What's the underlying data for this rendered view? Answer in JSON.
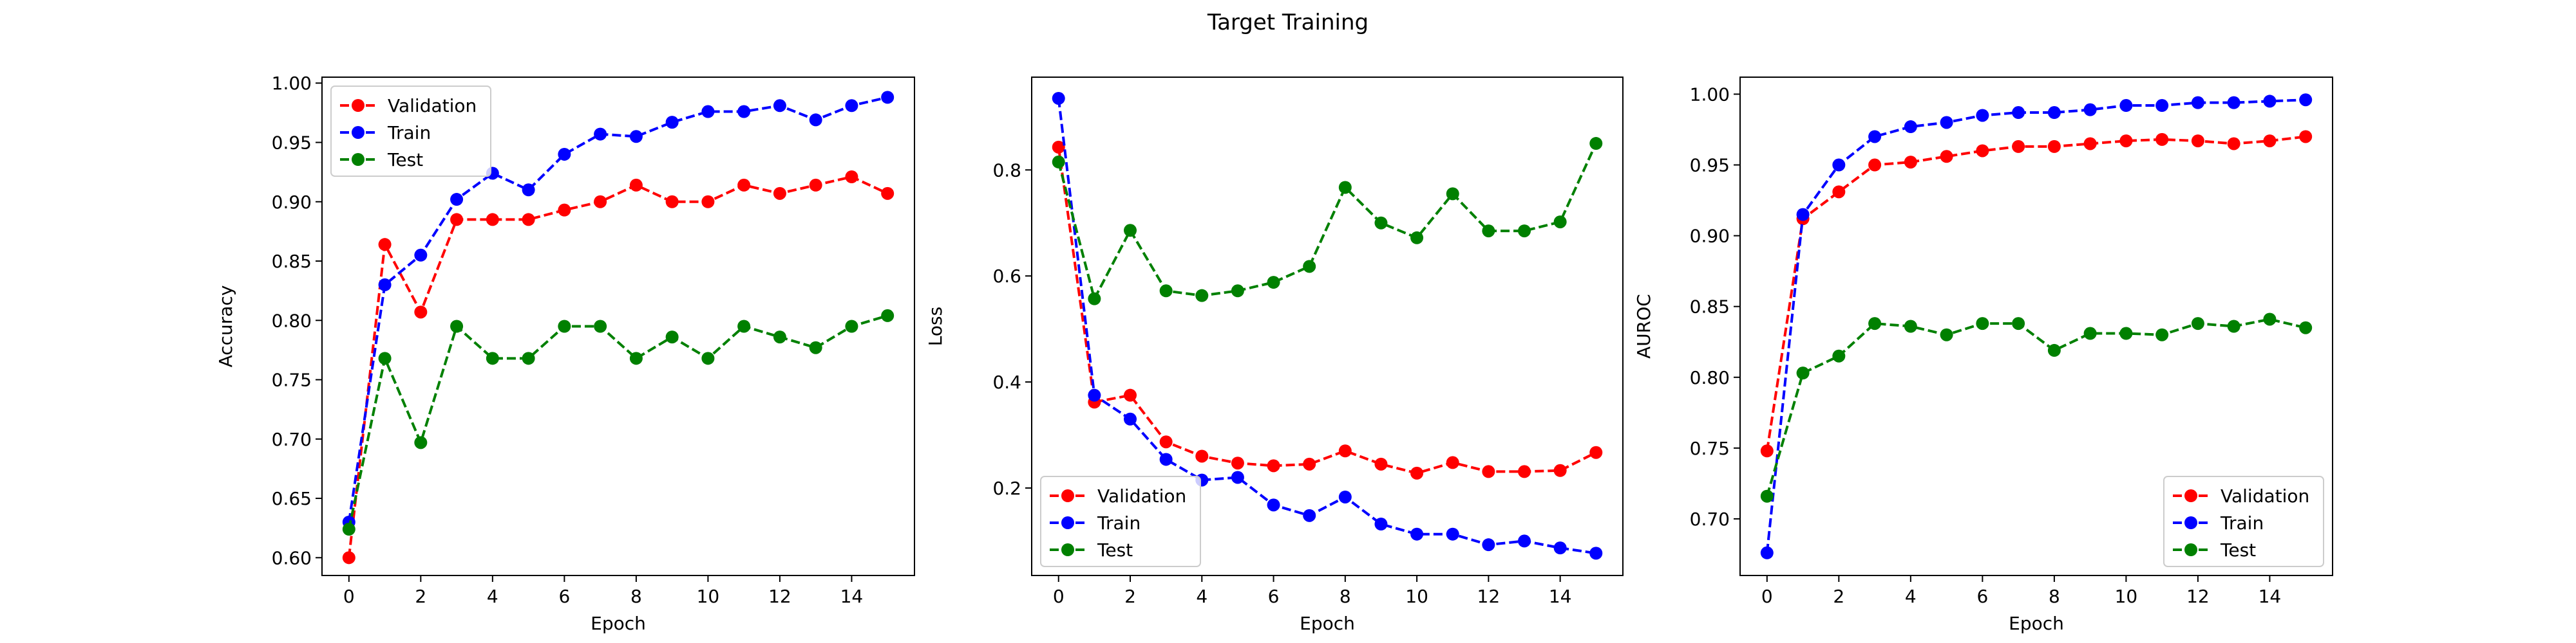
{
  "figure_title": "Target Training",
  "series_styles": [
    {
      "name": "Validation",
      "color": "#ff0000"
    },
    {
      "name": "Train",
      "color": "#0000ff"
    },
    {
      "name": "Test",
      "color": "#008000"
    }
  ],
  "chart_data": [
    {
      "type": "line",
      "xlabel": "Epoch",
      "ylabel": "Accuracy",
      "xlim": [
        -0.75,
        15.75
      ],
      "ylim": [
        0.585,
        1.005
      ],
      "xticks": [
        0,
        2,
        4,
        6,
        8,
        10,
        12,
        14
      ],
      "yticks": [
        0.6,
        0.65,
        0.7,
        0.75,
        0.8,
        0.85,
        0.9,
        0.95,
        1.0
      ],
      "ytick_decimals": 2,
      "legend_loc": "upper-left",
      "x": [
        0,
        1,
        2,
        3,
        4,
        5,
        6,
        7,
        8,
        9,
        10,
        11,
        12,
        13,
        14,
        15
      ],
      "series": [
        {
          "name": "Validation",
          "values": [
            0.6,
            0.864,
            0.807,
            0.885,
            0.885,
            0.885,
            0.893,
            0.9,
            0.914,
            0.9,
            0.9,
            0.914,
            0.907,
            0.914,
            0.921,
            0.907
          ]
        },
        {
          "name": "Train",
          "values": [
            0.63,
            0.83,
            0.855,
            0.902,
            0.924,
            0.91,
            0.94,
            0.957,
            0.955,
            0.967,
            0.976,
            0.976,
            0.981,
            0.969,
            0.981,
            0.988
          ]
        },
        {
          "name": "Test",
          "values": [
            0.624,
            0.768,
            0.697,
            0.795,
            0.768,
            0.768,
            0.795,
            0.795,
            0.768,
            0.786,
            0.768,
            0.795,
            0.786,
            0.777,
            0.795,
            0.804
          ]
        }
      ]
    },
    {
      "type": "line",
      "xlabel": "Epoch",
      "ylabel": "Loss",
      "xlim": [
        -0.75,
        15.75
      ],
      "ylim": [
        0.035,
        0.975
      ],
      "xticks": [
        0,
        2,
        4,
        6,
        8,
        10,
        12,
        14
      ],
      "yticks": [
        0.2,
        0.4,
        0.6,
        0.8
      ],
      "ytick_decimals": 1,
      "legend_loc": "lower-left",
      "x": [
        0,
        1,
        2,
        3,
        4,
        5,
        6,
        7,
        8,
        9,
        10,
        11,
        12,
        13,
        14,
        15
      ],
      "series": [
        {
          "name": "Validation",
          "values": [
            0.843,
            0.362,
            0.375,
            0.287,
            0.26,
            0.247,
            0.242,
            0.245,
            0.27,
            0.245,
            0.228,
            0.248,
            0.231,
            0.231,
            0.233,
            0.267
          ]
        },
        {
          "name": "Train",
          "values": [
            0.935,
            0.375,
            0.33,
            0.254,
            0.215,
            0.22,
            0.168,
            0.148,
            0.183,
            0.132,
            0.113,
            0.113,
            0.093,
            0.1,
            0.087,
            0.077
          ]
        },
        {
          "name": "Test",
          "values": [
            0.815,
            0.557,
            0.686,
            0.572,
            0.563,
            0.572,
            0.588,
            0.618,
            0.767,
            0.7,
            0.672,
            0.755,
            0.685,
            0.685,
            0.702,
            0.85
          ]
        }
      ]
    },
    {
      "type": "line",
      "xlabel": "Epoch",
      "ylabel": "AUROC",
      "xlim": [
        -0.75,
        15.75
      ],
      "ylim": [
        0.66,
        1.012
      ],
      "xticks": [
        0,
        2,
        4,
        6,
        8,
        10,
        12,
        14
      ],
      "yticks": [
        0.7,
        0.75,
        0.8,
        0.85,
        0.9,
        0.95,
        1.0
      ],
      "ytick_decimals": 2,
      "legend_loc": "lower-right",
      "x": [
        0,
        1,
        2,
        3,
        4,
        5,
        6,
        7,
        8,
        9,
        10,
        11,
        12,
        13,
        14,
        15
      ],
      "series": [
        {
          "name": "Validation",
          "values": [
            0.748,
            0.912,
            0.931,
            0.95,
            0.952,
            0.956,
            0.96,
            0.963,
            0.963,
            0.965,
            0.967,
            0.968,
            0.967,
            0.965,
            0.967,
            0.97
          ]
        },
        {
          "name": "Train",
          "values": [
            0.676,
            0.915,
            0.95,
            0.97,
            0.977,
            0.98,
            0.985,
            0.987,
            0.987,
            0.989,
            0.992,
            0.992,
            0.994,
            0.994,
            0.995,
            0.996
          ]
        },
        {
          "name": "Test",
          "values": [
            0.716,
            0.803,
            0.815,
            0.838,
            0.836,
            0.83,
            0.838,
            0.838,
            0.819,
            0.831,
            0.831,
            0.83,
            0.838,
            0.836,
            0.841,
            0.835
          ]
        }
      ]
    }
  ]
}
